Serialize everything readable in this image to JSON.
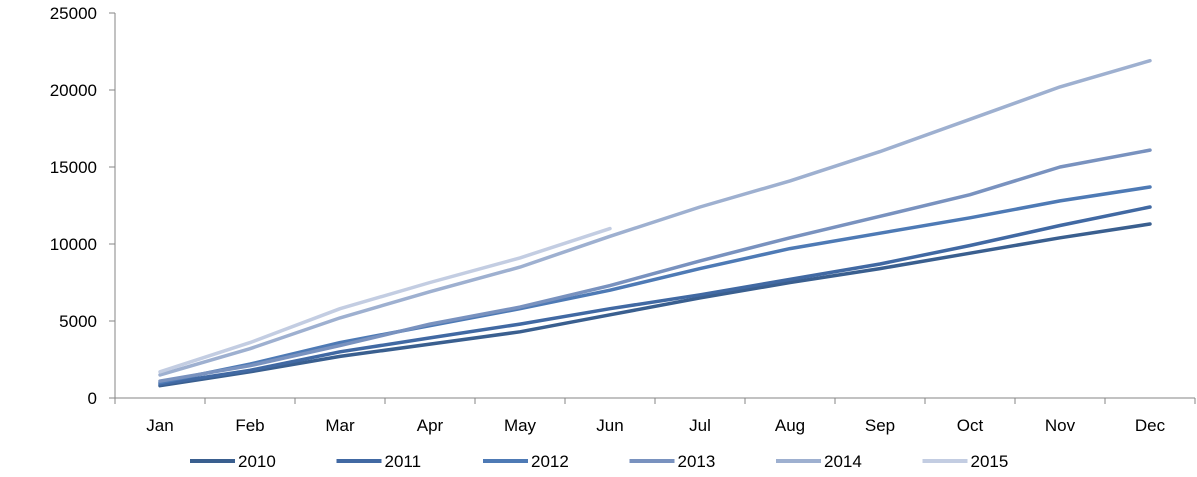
{
  "chart_data": {
    "type": "line",
    "title": "",
    "xlabel": "",
    "ylabel": "",
    "categories": [
      "Jan",
      "Feb",
      "Mar",
      "Apr",
      "May",
      "Jun",
      "Jul",
      "Aug",
      "Sep",
      "Oct",
      "Nov",
      "Dec"
    ],
    "ylim": [
      0,
      25000
    ],
    "yticks": [
      0,
      5000,
      10000,
      15000,
      20000,
      25000
    ],
    "grid": false,
    "legend_position": "bottom",
    "series": [
      {
        "name": "2010",
        "color": "#3a5f8f",
        "values": [
          800,
          1700,
          2700,
          3500,
          4300,
          5400,
          6500,
          7500,
          8400,
          9400,
          10400,
          11300
        ]
      },
      {
        "name": "2011",
        "color": "#4169a3",
        "values": [
          900,
          1800,
          3000,
          3900,
          4800,
          5800,
          6700,
          7700,
          8700,
          9900,
          11200,
          12400
        ]
      },
      {
        "name": "2012",
        "color": "#4e7ab5",
        "values": [
          1000,
          2200,
          3600,
          4700,
          5800,
          7000,
          8400,
          9700,
          10700,
          11700,
          12800,
          13700
        ]
      },
      {
        "name": "2013",
        "color": "#7992bf",
        "values": [
          1100,
          2100,
          3400,
          4800,
          5900,
          7300,
          8900,
          10400,
          11800,
          13200,
          15000,
          16100
        ]
      },
      {
        "name": "2014",
        "color": "#9eb0d0",
        "values": [
          1500,
          3200,
          5200,
          6900,
          8500,
          10500,
          12400,
          14100,
          16000,
          18100,
          20200,
          21900
        ]
      },
      {
        "name": "2015",
        "color": "#c3cde2",
        "values": [
          1700,
          3600,
          5800,
          7500,
          9100,
          11000,
          null,
          null,
          null,
          null,
          null,
          null
        ]
      }
    ]
  }
}
